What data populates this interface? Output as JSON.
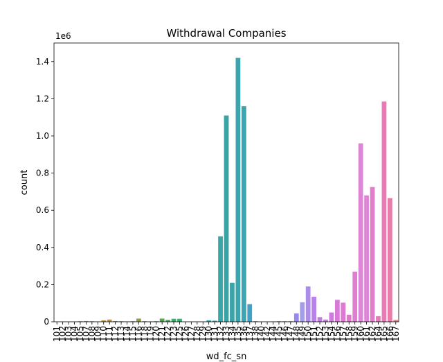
{
  "chart_data": {
    "type": "bar",
    "title": "Withdrawal Companies",
    "x_label": "wd_fc_sn",
    "y_label": "count",
    "y_offset_label": "1e6",
    "categories": [
      "101",
      "102",
      "103",
      "104",
      "105",
      "107",
      "108",
      "109",
      "110",
      "111",
      "112",
      "113",
      "114",
      "115",
      "116",
      "118",
      "119",
      "120",
      "121",
      "122",
      "123",
      "125",
      "126",
      "127",
      "128",
      "129",
      "130",
      "131",
      "132",
      "133",
      "134",
      "135",
      "136",
      "137",
      "138",
      "140",
      "142",
      "144",
      "145",
      "146",
      "147",
      "148",
      "149",
      "150",
      "151",
      "152",
      "153",
      "154",
      "156",
      "157",
      "158",
      "159",
      "160",
      "161",
      "162",
      "164",
      "165",
      "166",
      "167"
    ],
    "values": [
      1000,
      1500,
      800,
      1200,
      3000,
      4000,
      3000,
      2000,
      8000,
      12000,
      4000,
      3000,
      2000,
      3000,
      17000,
      3000,
      2000,
      3000,
      17000,
      10000,
      16000,
      16000,
      1000,
      1000,
      1000,
      1000,
      8000,
      6000,
      460000,
      1110000,
      210000,
      1420000,
      1160000,
      95000,
      3000,
      1000,
      1000,
      2000,
      3000,
      3000,
      3000,
      45000,
      105000,
      190000,
      135000,
      25000,
      12000,
      50000,
      118000,
      103000,
      38000,
      270000,
      960000,
      680000,
      725000,
      30000,
      1185000,
      665000,
      10000
    ],
    "colors": [
      "#e0827e",
      "#df837a",
      "#dd8575",
      "#da866f",
      "#d68868",
      "#d18a60",
      "#cc8c58",
      "#c68e50",
      "#c0904a",
      "#b99246",
      "#b29545",
      "#aa9845",
      "#a19a45",
      "#979c46",
      "#8c9e47",
      "#80a148",
      "#72a449",
      "#62a64b",
      "#50a84e",
      "#42a95a",
      "#3eaa68",
      "#3daa74",
      "#3caa7f",
      "#3caa88",
      "#3caa90",
      "#3ba998",
      "#3ba9a0",
      "#3ba8a6",
      "#3ba6a6",
      "#3ba3a3",
      "#3ca4a8",
      "#3ca4ac",
      "#3ea4b2",
      "#43a1c6",
      "#479fcc",
      "#4d9dd3",
      "#569ada",
      "#6297e0",
      "#7094e5",
      "#7f91e8",
      "#8c8eea",
      "#988aeb",
      "#a39eea",
      "#ad8cea",
      "#b781e8",
      "#c07ee5",
      "#c97ce1",
      "#d17add",
      "#d879d8",
      "#de78d2",
      "#e278cb",
      "#e07fcf",
      "#dd86d6",
      "#dd85d5",
      "#e07ec8",
      "#e57cb8",
      "#e87bb4",
      "#e97ca8",
      "#e4818a"
    ],
    "ylim": [
      0,
      1500000
    ],
    "yticks": [
      0,
      {
        "value": 200000,
        "label": "0.2"
      },
      {
        "value": 400000,
        "label": "0.4"
      },
      {
        "value": 600000,
        "label": "0.6"
      },
      {
        "value": 800000,
        "label": "0.8"
      },
      {
        "value": 1000000,
        "label": "1.0"
      },
      {
        "value": 1200000,
        "label": "1.2"
      },
      {
        "value": 1400000,
        "label": "1.4"
      }
    ]
  }
}
